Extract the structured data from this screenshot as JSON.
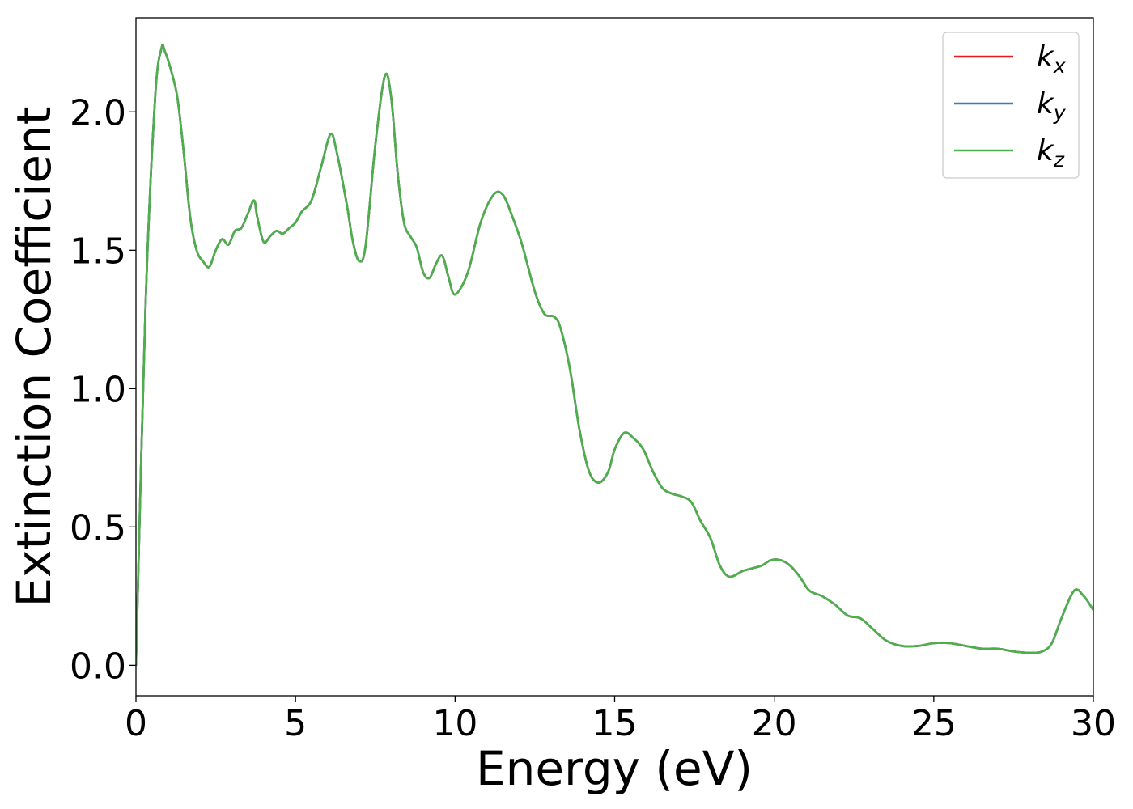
{
  "chart_data": {
    "type": "line",
    "title": "",
    "xlabel": "Energy (eV)",
    "ylabel": "Extinction Coefficient",
    "xlim": [
      0,
      30
    ],
    "ylim": [
      -0.11,
      2.34
    ],
    "xticks": [
      0,
      5,
      10,
      15,
      20,
      25,
      30
    ],
    "xtick_labels": [
      "0",
      "5",
      "10",
      "15",
      "20",
      "25",
      "30"
    ],
    "yticks": [
      0.0,
      0.5,
      1.0,
      1.5,
      2.0
    ],
    "ytick_labels": [
      "0.0",
      "0.5",
      "1.0",
      "1.5",
      "2.0"
    ],
    "grid": false,
    "legend_position": "top-right",
    "x": [
      0,
      0.3,
      0.6,
      0.8,
      0.9,
      1.1,
      1.3,
      1.5,
      1.7,
      1.9,
      2.1,
      2.3,
      2.5,
      2.7,
      2.9,
      3.1,
      3.3,
      3.5,
      3.7,
      3.8,
      4.0,
      4.2,
      4.4,
      4.6,
      4.8,
      5.0,
      5.2,
      5.5,
      5.8,
      6.1,
      6.3,
      6.6,
      6.8,
      7.0,
      7.2,
      7.5,
      7.8,
      8.0,
      8.2,
      8.4,
      8.6,
      8.8,
      9.0,
      9.2,
      9.4,
      9.6,
      9.8,
      10.0,
      10.4,
      10.8,
      11.2,
      11.5,
      11.8,
      12.1,
      12.5,
      12.8,
      13.1,
      13.3,
      13.6,
      13.9,
      14.2,
      14.5,
      14.8,
      15.0,
      15.3,
      15.6,
      15.9,
      16.2,
      16.5,
      16.8,
      17.1,
      17.4,
      17.7,
      18.0,
      18.3,
      18.6,
      19.0,
      19.3,
      19.6,
      19.9,
      20.2,
      20.5,
      20.8,
      21.1,
      21.5,
      21.9,
      22.3,
      22.7,
      23.1,
      23.5,
      24.0,
      24.5,
      25.0,
      25.5,
      26.0,
      26.5,
      27.0,
      27.5,
      28.0,
      28.4,
      28.7,
      29.0,
      29.4,
      29.7,
      30.0
    ],
    "series": [
      {
        "name": "k_x",
        "label_main": "k",
        "label_sub": "x",
        "color": "#e41a1c",
        "values": [
          0.0,
          1.3,
          2.05,
          2.23,
          2.22,
          2.15,
          2.05,
          1.85,
          1.62,
          1.5,
          1.46,
          1.44,
          1.5,
          1.54,
          1.52,
          1.57,
          1.58,
          1.63,
          1.68,
          1.62,
          1.53,
          1.55,
          1.57,
          1.56,
          1.58,
          1.6,
          1.64,
          1.68,
          1.8,
          1.92,
          1.85,
          1.67,
          1.53,
          1.46,
          1.52,
          1.88,
          2.13,
          2.05,
          1.78,
          1.6,
          1.55,
          1.51,
          1.42,
          1.4,
          1.45,
          1.48,
          1.4,
          1.34,
          1.42,
          1.6,
          1.7,
          1.7,
          1.62,
          1.52,
          1.35,
          1.27,
          1.26,
          1.22,
          1.07,
          0.85,
          0.7,
          0.66,
          0.7,
          0.78,
          0.84,
          0.82,
          0.78,
          0.7,
          0.64,
          0.62,
          0.61,
          0.59,
          0.52,
          0.46,
          0.36,
          0.32,
          0.34,
          0.35,
          0.36,
          0.38,
          0.38,
          0.36,
          0.32,
          0.27,
          0.25,
          0.22,
          0.18,
          0.17,
          0.13,
          0.09,
          0.07,
          0.07,
          0.08,
          0.08,
          0.07,
          0.06,
          0.06,
          0.05,
          0.045,
          0.05,
          0.08,
          0.17,
          0.27,
          0.25,
          0.2
        ]
      },
      {
        "name": "k_y",
        "label_main": "k",
        "label_sub": "y",
        "color": "#377eb8",
        "values": [
          0.0,
          1.3,
          2.05,
          2.23,
          2.22,
          2.15,
          2.05,
          1.85,
          1.62,
          1.5,
          1.46,
          1.44,
          1.5,
          1.54,
          1.52,
          1.57,
          1.58,
          1.63,
          1.68,
          1.62,
          1.53,
          1.55,
          1.57,
          1.56,
          1.58,
          1.6,
          1.64,
          1.68,
          1.8,
          1.92,
          1.85,
          1.67,
          1.53,
          1.46,
          1.52,
          1.88,
          2.13,
          2.05,
          1.78,
          1.6,
          1.55,
          1.51,
          1.42,
          1.4,
          1.45,
          1.48,
          1.4,
          1.34,
          1.42,
          1.6,
          1.7,
          1.7,
          1.62,
          1.52,
          1.35,
          1.27,
          1.26,
          1.22,
          1.07,
          0.85,
          0.7,
          0.66,
          0.7,
          0.78,
          0.84,
          0.82,
          0.78,
          0.7,
          0.64,
          0.62,
          0.61,
          0.59,
          0.52,
          0.46,
          0.36,
          0.32,
          0.34,
          0.35,
          0.36,
          0.38,
          0.38,
          0.36,
          0.32,
          0.27,
          0.25,
          0.22,
          0.18,
          0.17,
          0.13,
          0.09,
          0.07,
          0.07,
          0.08,
          0.08,
          0.07,
          0.06,
          0.06,
          0.05,
          0.045,
          0.05,
          0.08,
          0.17,
          0.27,
          0.25,
          0.2
        ]
      },
      {
        "name": "k_z",
        "label_main": "k",
        "label_sub": "z",
        "color": "#4daf4a",
        "values": [
          0.0,
          1.3,
          2.05,
          2.23,
          2.22,
          2.15,
          2.05,
          1.85,
          1.62,
          1.5,
          1.46,
          1.44,
          1.5,
          1.54,
          1.52,
          1.57,
          1.58,
          1.63,
          1.68,
          1.62,
          1.53,
          1.55,
          1.57,
          1.56,
          1.58,
          1.6,
          1.64,
          1.68,
          1.8,
          1.92,
          1.85,
          1.67,
          1.53,
          1.46,
          1.52,
          1.88,
          2.13,
          2.05,
          1.78,
          1.6,
          1.55,
          1.51,
          1.42,
          1.4,
          1.45,
          1.48,
          1.4,
          1.34,
          1.42,
          1.6,
          1.7,
          1.7,
          1.62,
          1.52,
          1.35,
          1.27,
          1.26,
          1.22,
          1.07,
          0.85,
          0.7,
          0.66,
          0.7,
          0.78,
          0.84,
          0.82,
          0.78,
          0.7,
          0.64,
          0.62,
          0.61,
          0.59,
          0.52,
          0.46,
          0.36,
          0.32,
          0.34,
          0.35,
          0.36,
          0.38,
          0.38,
          0.36,
          0.32,
          0.27,
          0.25,
          0.22,
          0.18,
          0.17,
          0.13,
          0.09,
          0.07,
          0.07,
          0.08,
          0.08,
          0.07,
          0.06,
          0.06,
          0.05,
          0.045,
          0.05,
          0.08,
          0.17,
          0.27,
          0.25,
          0.2
        ]
      }
    ]
  }
}
